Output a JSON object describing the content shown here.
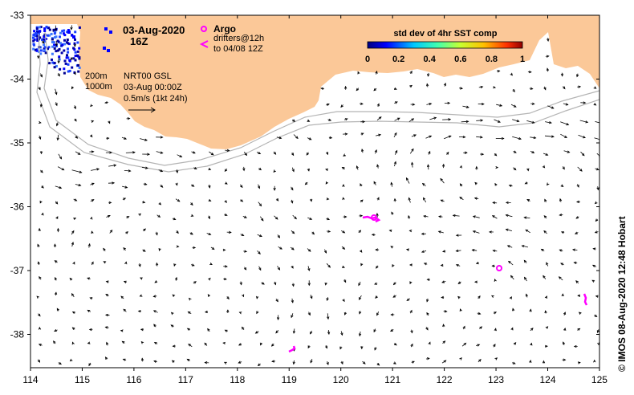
{
  "map": {
    "date": "03-Aug-2020",
    "hour": "16Z",
    "legend": {
      "argo_label": "Argo",
      "drifters_line1": "drifters@12h",
      "drifters_line2": "to 04/08 12Z"
    },
    "isobaths": [
      "200m",
      "1000m"
    ],
    "product": {
      "line1": "NRT00 GSL",
      "line2": "03-Aug 00:00Z",
      "line3": "0.5m/s (1kt 24h)"
    },
    "colorbar": {
      "title": "std dev of 4hr SST comp",
      "ticks": [
        "0",
        "0.2",
        "0.4",
        "0.6",
        "0.8",
        "1"
      ]
    },
    "credit": "© IMOS 08-Aug-2020 12:48 Hobart",
    "lon_ticks": [
      "114",
      "115",
      "116",
      "117",
      "118",
      "119",
      "120",
      "121",
      "122",
      "123",
      "124",
      "125"
    ],
    "lat_ticks": [
      "-33",
      "-34",
      "-35",
      "-36",
      "-37",
      "-38"
    ],
    "colors": {
      "land": "#fbc898",
      "drifters": "#ff00ff",
      "isobath": "#b4b4b4",
      "arrows": "#000000"
    }
  }
}
